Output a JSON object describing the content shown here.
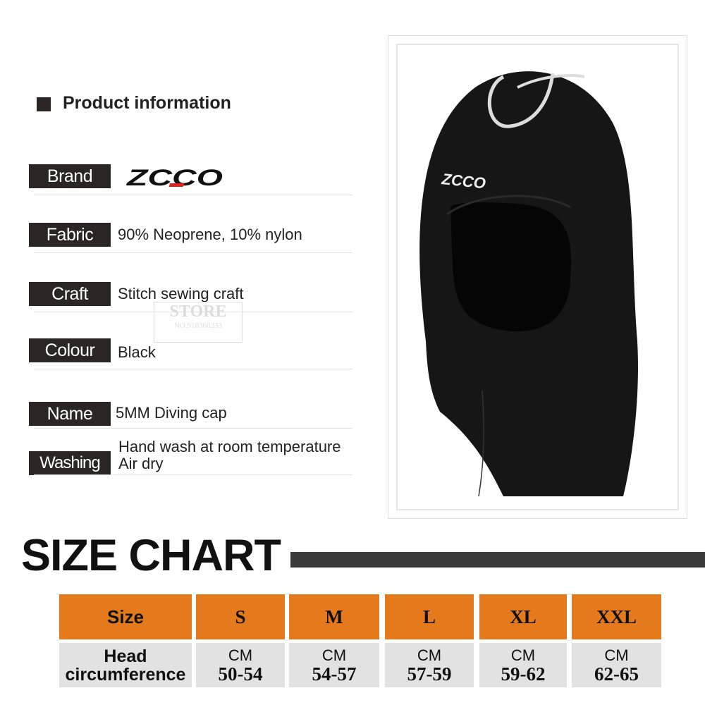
{
  "header": {
    "title": "Product information"
  },
  "brand": {
    "label": "Brand",
    "logo_text": "ZCCO"
  },
  "specs": [
    {
      "label": "Fabric",
      "value": "90% Neoprene, 10% nylon"
    },
    {
      "label": "Craft",
      "value": "Stitch sewing craft"
    },
    {
      "label": "Colour",
      "value": "Black"
    },
    {
      "label": "Name",
      "value": "5MM Diving cap"
    },
    {
      "label": "Washing",
      "value": "Hand wash at room temperature",
      "value2": "Air dry"
    }
  ],
  "watermark": {
    "line1": "STORE",
    "line2": "NO.910360233"
  },
  "product_logo": "ZCCO",
  "size_chart": {
    "title": "SIZE CHART",
    "row_header": "Size",
    "measure_label": "Head circumference",
    "sizes": [
      {
        "size": "S",
        "unit": "CM",
        "range": "50-54"
      },
      {
        "size": "M",
        "unit": "CM",
        "range": "54-57"
      },
      {
        "size": "L",
        "unit": "CM",
        "range": "57-59"
      },
      {
        "size": "XL",
        "unit": "CM",
        "range": "59-62"
      },
      {
        "size": "XXL",
        "unit": "CM",
        "range": "62-65"
      }
    ]
  },
  "colors": {
    "accent": "#e57a1d",
    "label_bg": "#2b2625",
    "cell_bg": "#e2e2e2"
  }
}
